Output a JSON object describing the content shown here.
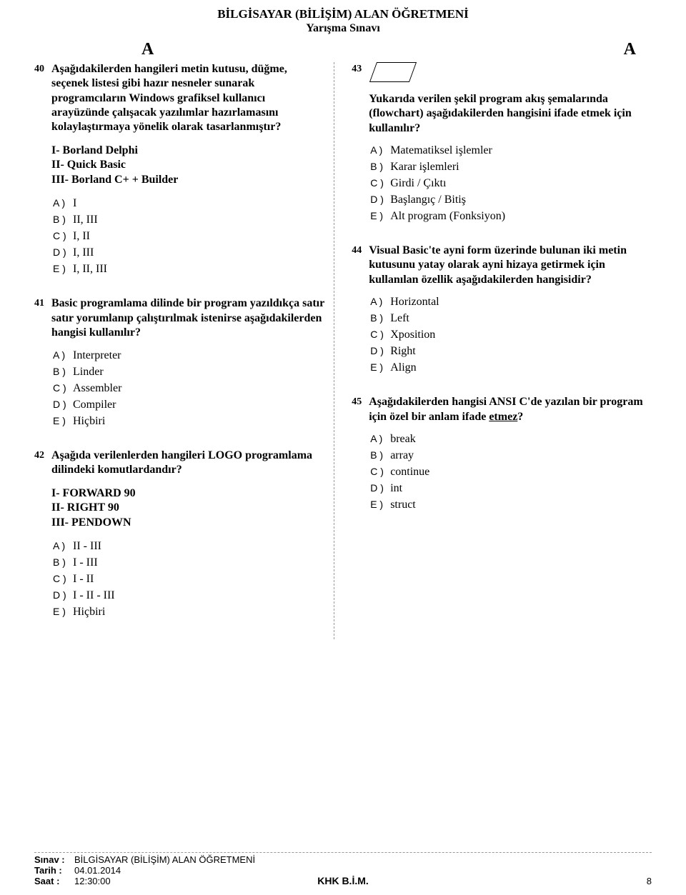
{
  "header": {
    "line1": "BİLGİSAYAR (BİLİŞİM) ALAN ÖĞRETMENİ",
    "line2": "Yarışma Sınavı",
    "letterLeft": "A",
    "letterRight": "A"
  },
  "leftQuestions": [
    {
      "num": "40",
      "text": "Aşağıdakilerden hangileri metin kutusu, düğme, seçenek listesi gibi hazır nesneler sunarak programcıların Windows grafiksel kullanıcı arayüzünde çalışacak yazılımlar hazırlamasını kolaylaştırmaya yönelik olarak tasarlanmıştır?",
      "extra": "I- Borland Delphi\nII- Quick Basic\nIII- Borland C+ + Builder",
      "options": [
        {
          "letter": "A )",
          "text": "I"
        },
        {
          "letter": "B )",
          "text": "II, III"
        },
        {
          "letter": "C )",
          "text": "I, II"
        },
        {
          "letter": "D )",
          "text": "I, III"
        },
        {
          "letter": "E )",
          "text": "I, II, III"
        }
      ]
    },
    {
      "num": "41",
      "text": "Basic programlama dilinde bir program yazıldıkça satır satır yorumlanıp çalıştırılmak istenirse aşağıdakilerden hangisi kullanılır?",
      "options": [
        {
          "letter": "A )",
          "text": "Interpreter"
        },
        {
          "letter": "B )",
          "text": "Linder"
        },
        {
          "letter": "C )",
          "text": "Assembler"
        },
        {
          "letter": "D )",
          "text": "Compiler"
        },
        {
          "letter": "E )",
          "text": "Hiçbiri"
        }
      ]
    },
    {
      "num": "42",
      "text": "Aşağıda verilenlerden hangileri LOGO programlama dilindeki komutlardandır?",
      "extra": "I- FORWARD 90\nII- RIGHT 90\nIII- PENDOWN",
      "options": [
        {
          "letter": "A )",
          "text": "II - III"
        },
        {
          "letter": "B )",
          "text": "I - III"
        },
        {
          "letter": "C )",
          "text": "I - II"
        },
        {
          "letter": "D )",
          "text": "I - II - III"
        },
        {
          "letter": "E )",
          "text": "Hiçbiri"
        }
      ]
    }
  ],
  "rightQuestions": [
    {
      "num": "43",
      "hasShape": true,
      "text": "Yukarıda verilen şekil program akış şemalarında (flowchart) aşağıdakilerden hangisini ifade etmek için kullanılır?",
      "options": [
        {
          "letter": "A )",
          "text": "Matematiksel işlemler"
        },
        {
          "letter": "B )",
          "text": "Karar işlemleri"
        },
        {
          "letter": "C )",
          "text": "Girdi / Çıktı"
        },
        {
          "letter": "D )",
          "text": "Başlangıç / Bitiş"
        },
        {
          "letter": "E )",
          "text": "Alt program (Fonksiyon)"
        }
      ]
    },
    {
      "num": "44",
      "text": "Visual Basic'te ayni form üzerinde bulunan iki metin kutusunu yatay olarak ayni hizaya getirmek için kullanılan özellik aşağıdakilerden hangisidir?",
      "options": [
        {
          "letter": "A )",
          "text": "Horizontal"
        },
        {
          "letter": "B )",
          "text": "Left"
        },
        {
          "letter": "C )",
          "text": "Xposition"
        },
        {
          "letter": "D )",
          "text": "Right"
        },
        {
          "letter": "E )",
          "text": "Align"
        }
      ]
    },
    {
      "num": "45",
      "text": "Aşağıdakilerden hangisi ANSI C'de yazılan bir program için özel bir anlam ifade ",
      "underlineSuffix": "etmez",
      "suffixPunct": "?",
      "options": [
        {
          "letter": "A )",
          "text": "break"
        },
        {
          "letter": "B )",
          "text": "array"
        },
        {
          "letter": "C )",
          "text": "continue"
        },
        {
          "letter": "D )",
          "text": "int"
        },
        {
          "letter": "E )",
          "text": "struct"
        }
      ]
    }
  ],
  "footer": {
    "sinavLabel": "Sınav :",
    "sinavVal": "BİLGİSAYAR (BİLİŞİM) ALAN ÖĞRETMENİ",
    "tarihLabel": "Tarih :",
    "tarihVal": "04.01.2014",
    "saatLabel": "Saat  :",
    "saatVal": "12:30:00",
    "center": "KHK B.İ.M.",
    "page": "8"
  }
}
